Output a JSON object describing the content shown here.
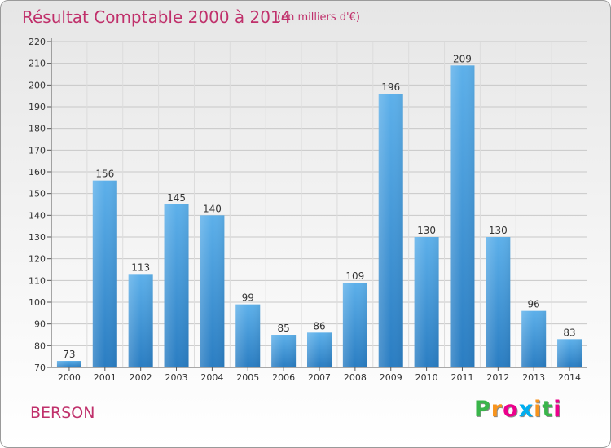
{
  "chart_data": {
    "type": "bar",
    "title": "Résultat Comptable 2000 à 2014",
    "subtitle": "(en milliers d'€)",
    "categories": [
      "2000",
      "2001",
      "2002",
      "2003",
      "2004",
      "2005",
      "2006",
      "2007",
      "2008",
      "2009",
      "2010",
      "2011",
      "2012",
      "2013",
      "2014"
    ],
    "values": [
      73,
      156,
      113,
      145,
      140,
      99,
      85,
      86,
      109,
      196,
      130,
      209,
      130,
      96,
      83
    ],
    "ylim": [
      70,
      220
    ],
    "yticks": [
      70,
      80,
      90,
      100,
      110,
      120,
      130,
      140,
      150,
      160,
      170,
      180,
      190,
      200,
      210,
      220
    ],
    "grid": true,
    "bar_color": "#3d96da"
  },
  "footer": {
    "commune": "BERSON",
    "logo_letters": [
      "P",
      "r",
      "o",
      "x",
      "i",
      "t",
      "i"
    ],
    "logo_colors": [
      "#39b54a",
      "#f7941d",
      "#ec008c",
      "#00aeef",
      "#f7941d",
      "#39b54a",
      "#ec008c"
    ]
  }
}
